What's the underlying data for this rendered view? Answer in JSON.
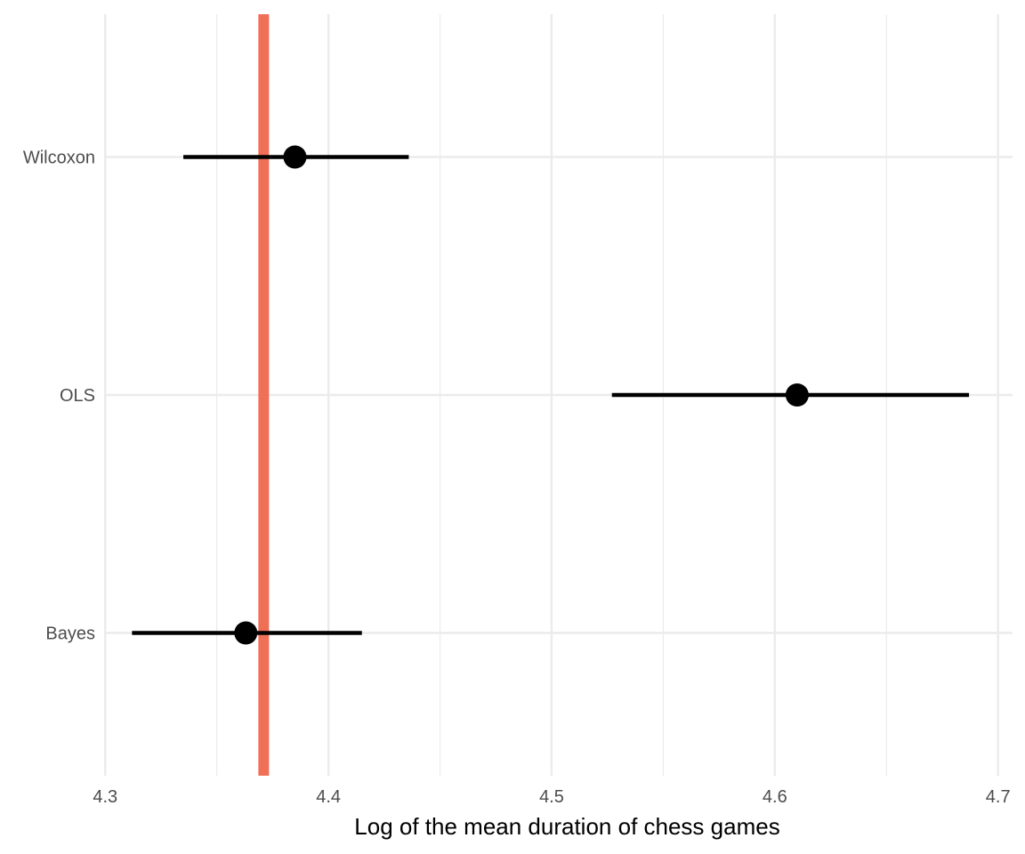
{
  "chart_data": {
    "type": "point-range",
    "title": "",
    "xlabel": "Log of the mean duration of chess games",
    "ylabel": "",
    "xlim": [
      4.2995,
      4.7065
    ],
    "x_ticks": [
      {
        "value": 4.3,
        "label": "4.3"
      },
      {
        "value": 4.4,
        "label": "4.4"
      },
      {
        "value": 4.5,
        "label": "4.5"
      },
      {
        "value": 4.6,
        "label": "4.6"
      },
      {
        "value": 4.7,
        "label": "4.7"
      }
    ],
    "x_minor_ticks": [
      4.35,
      4.45,
      4.55,
      4.65
    ],
    "categories": [
      "Bayes",
      "OLS",
      "Wilcoxon"
    ],
    "points": [
      {
        "category": "Wilcoxon",
        "estimate": 4.385,
        "lower": 4.335,
        "upper": 4.436
      },
      {
        "category": "OLS",
        "estimate": 4.61,
        "lower": 4.527,
        "upper": 4.687
      },
      {
        "category": "Bayes",
        "estimate": 4.363,
        "lower": 4.312,
        "upper": 4.415
      }
    ],
    "reference_line": {
      "value": 4.371,
      "color": "#F07057"
    },
    "grid": true,
    "legend": "none",
    "colors": {
      "grid": "#EBEBEB",
      "point": "#000000",
      "interval": "#000000"
    }
  }
}
